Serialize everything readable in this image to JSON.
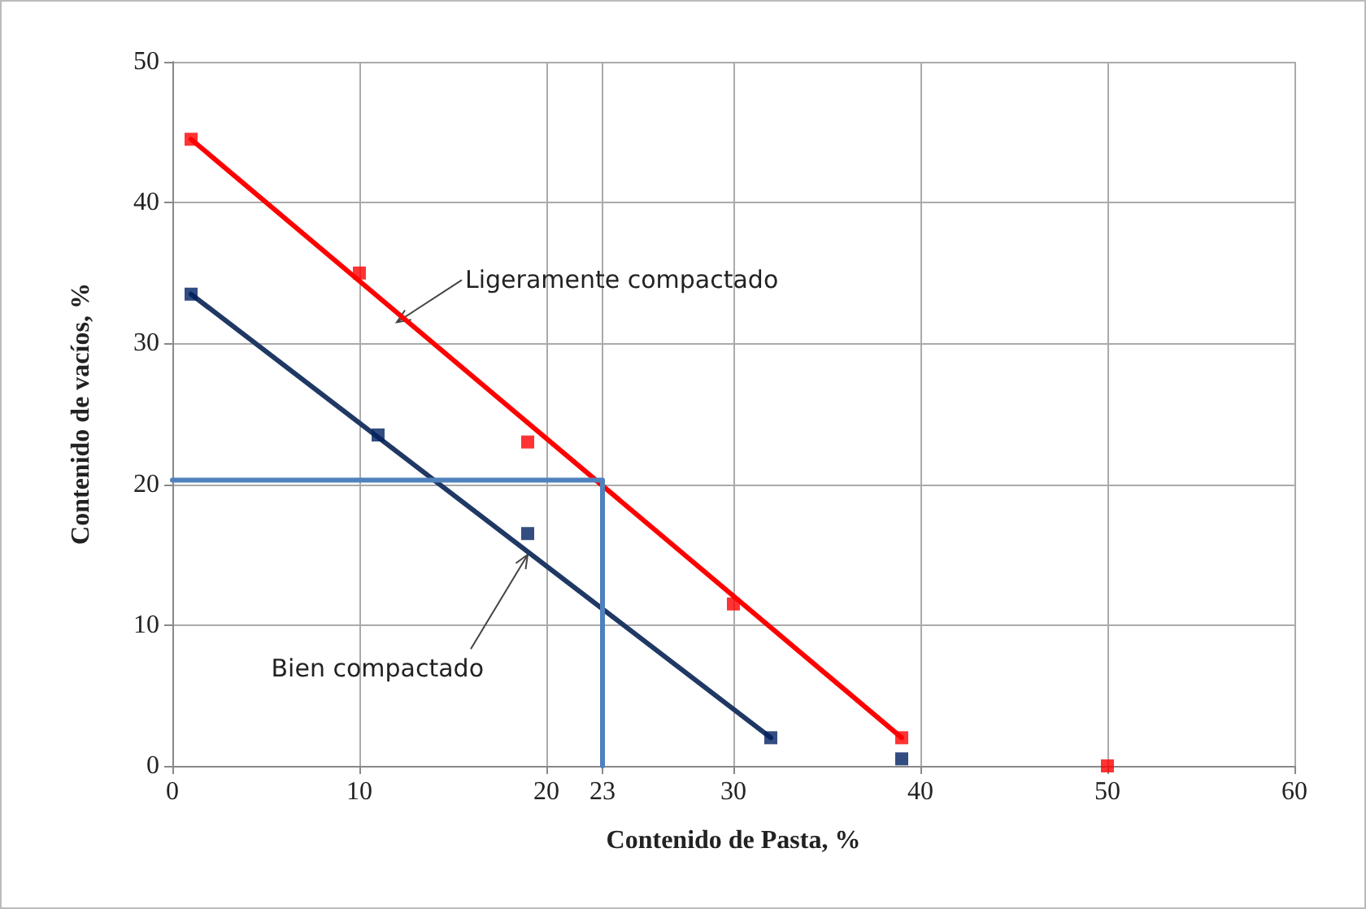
{
  "chart_data": {
    "type": "scatter",
    "xlabel": "Contenido de Pasta, %",
    "ylabel": "Contenido de vacíos, %",
    "xlim": [
      0,
      60
    ],
    "xticks": [
      0,
      10,
      20,
      {
        "value": 23,
        "label": "23"
      },
      30,
      40,
      50,
      60
    ],
    "ylim": [
      0,
      50
    ],
    "yticks": [
      0,
      10,
      20,
      30,
      40,
      50
    ],
    "grid": true,
    "marker": "square",
    "series": [
      {
        "color": "#ff0000",
        "x": [
          1,
          10,
          19,
          30,
          39,
          50
        ],
        "values": [
          44.5,
          35,
          23,
          11.5,
          2,
          0
        ]
      },
      {
        "color": "#002060",
        "x": [
          1,
          11,
          19,
          32,
          39
        ],
        "values": [
          33.5,
          23.5,
          16.5,
          2,
          0.5
        ]
      },
      {
        "type": "line",
        "marker": "none",
        "color": "#ff0000",
        "x": [
          1,
          39
        ],
        "values": [
          44.5,
          2
        ]
      },
      {
        "type": "line",
        "marker": "none",
        "color": "#1f3864",
        "x": [
          1,
          32
        ],
        "values": [
          33.5,
          2
        ]
      },
      {
        "type": "line",
        "marker": "none",
        "color": "#4f81bd",
        "x": [
          0,
          23,
          23
        ],
        "values": [
          20.3,
          20.3,
          0
        ]
      }
    ],
    "annotations": [
      {
        "text": "Ligeramente compactado",
        "x": 12,
        "y": 31.5
      },
      {
        "text": "Bien compactado",
        "x": 19,
        "y": 15
      }
    ]
  }
}
